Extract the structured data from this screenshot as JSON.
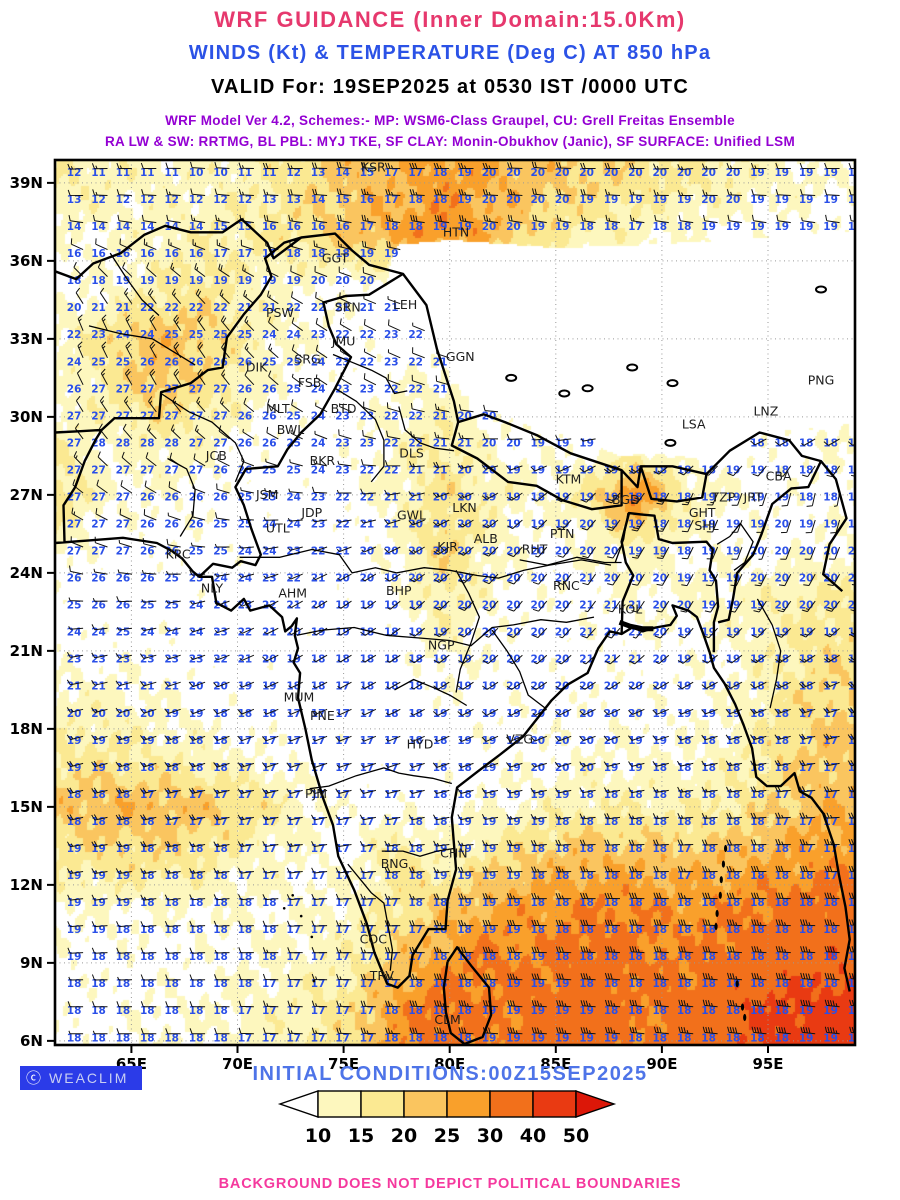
{
  "header": {
    "title": "WRF GUIDANCE (Inner Domain:15.0Km)",
    "subtitle": "WINDS (Kt) & TEMPERATURE (Deg C) AT 850 hPa",
    "valid_line": "VALID For: 19SEP2025 at 0530 IST /0000 UTC",
    "scheme_line1": "WRF Model Ver 4.2, Schemes:- MP: WSM6-Class Graupel, CU: Grell Freitas Ensemble",
    "scheme_line2": "RA LW & SW: RRTMG, BL PBL: MYJ TKE, SF CLAY: Monin-Obukhov (Janic), SF SURFACE: Unified LSM",
    "colors": {
      "title": "#E6386D",
      "subtitle": "#2B52E6",
      "valid": "#000000",
      "schemes": "#9400D3"
    }
  },
  "map": {
    "lon_ticks": [
      "65E",
      "70E",
      "75E",
      "80E",
      "85E",
      "90E",
      "95E"
    ],
    "lon_tick_values": [
      65,
      70,
      75,
      80,
      85,
      90,
      95
    ],
    "lat_ticks": [
      "39N",
      "36N",
      "33N",
      "30N",
      "27N",
      "24N",
      "21N",
      "18N",
      "15N",
      "12N",
      "9N",
      "6N"
    ],
    "lat_tick_values": [
      39,
      36,
      33,
      30,
      27,
      24,
      21,
      18,
      15,
      12,
      9,
      6
    ],
    "temp_color": "#2A4FE8",
    "station_color": "#1c1c1c",
    "stations": [
      {
        "id": "KSR",
        "lon": 76.4,
        "lat": 39.6
      },
      {
        "id": "HTN",
        "lon": 80.3,
        "lat": 37.1
      },
      {
        "id": "GGT",
        "lon": 74.6,
        "lat": 36.1
      },
      {
        "id": "SRN",
        "lon": 75.2,
        "lat": 34.2
      },
      {
        "id": "LEH",
        "lon": 77.9,
        "lat": 34.3
      },
      {
        "id": "JMU",
        "lon": 75.0,
        "lat": 32.9
      },
      {
        "id": "PSW",
        "lon": 72.0,
        "lat": 34.0
      },
      {
        "id": "SRG",
        "lon": 73.3,
        "lat": 32.2
      },
      {
        "id": "FSB",
        "lon": 73.4,
        "lat": 31.3
      },
      {
        "id": "GGN",
        "lon": 80.5,
        "lat": 32.3
      },
      {
        "id": "DIK",
        "lon": 70.9,
        "lat": 31.9
      },
      {
        "id": "MLT",
        "lon": 71.9,
        "lat": 30.3
      },
      {
        "id": "BWL",
        "lon": 72.5,
        "lat": 29.5
      },
      {
        "id": "BTD",
        "lon": 75.0,
        "lat": 30.3
      },
      {
        "id": "LNZ",
        "lon": 94.9,
        "lat": 30.2
      },
      {
        "id": "LSA",
        "lon": 91.5,
        "lat": 29.7
      },
      {
        "id": "PNG",
        "lon": 97.5,
        "lat": 31.4
      },
      {
        "id": "JCB",
        "lon": 69.0,
        "lat": 28.5
      },
      {
        "id": "BKR",
        "lon": 74.0,
        "lat": 28.3
      },
      {
        "id": "DLS",
        "lon": 78.2,
        "lat": 28.6
      },
      {
        "id": "KTM",
        "lon": 85.6,
        "lat": 27.6
      },
      {
        "id": "JSM",
        "lon": 71.4,
        "lat": 27.0
      },
      {
        "id": "JDP",
        "lon": 73.5,
        "lat": 26.3
      },
      {
        "id": "UTL",
        "lon": 71.9,
        "lat": 25.7
      },
      {
        "id": "GWL",
        "lon": 78.2,
        "lat": 26.2
      },
      {
        "id": "LKN",
        "lon": 80.7,
        "lat": 26.5
      },
      {
        "id": "BGD",
        "lon": 88.3,
        "lat": 26.8
      },
      {
        "id": "GHT",
        "lon": 91.9,
        "lat": 26.3
      },
      {
        "id": "SHL",
        "lon": 92.1,
        "lat": 25.8
      },
      {
        "id": "TZP",
        "lon": 92.9,
        "lat": 26.9
      },
      {
        "id": "JRT",
        "lon": 94.3,
        "lat": 26.9
      },
      {
        "id": "CBA",
        "lon": 95.5,
        "lat": 27.7
      },
      {
        "id": "PTN",
        "lon": 85.3,
        "lat": 25.5
      },
      {
        "id": "ALB",
        "lon": 81.7,
        "lat": 25.3
      },
      {
        "id": "KJR",
        "lon": 79.9,
        "lat": 25.0
      },
      {
        "id": "RHT",
        "lon": 84.0,
        "lat": 24.9
      },
      {
        "id": "KRC",
        "lon": 67.2,
        "lat": 24.7
      },
      {
        "id": "NLY",
        "lon": 68.8,
        "lat": 23.4
      },
      {
        "id": "AHM",
        "lon": 72.6,
        "lat": 23.2
      },
      {
        "id": "BHP",
        "lon": 77.6,
        "lat": 23.3
      },
      {
        "id": "RNC",
        "lon": 85.5,
        "lat": 23.5
      },
      {
        "id": "KOL",
        "lon": 88.5,
        "lat": 22.6
      },
      {
        "id": "NGP",
        "lon": 79.6,
        "lat": 21.2
      },
      {
        "id": "MUM",
        "lon": 72.9,
        "lat": 19.2
      },
      {
        "id": "PNE",
        "lon": 74.0,
        "lat": 18.5
      },
      {
        "id": "HYD",
        "lon": 78.6,
        "lat": 17.4
      },
      {
        "id": "VZG",
        "lon": 83.3,
        "lat": 17.6
      },
      {
        "id": "PJM",
        "lon": 73.7,
        "lat": 15.5
      },
      {
        "id": "BNG",
        "lon": 77.4,
        "lat": 12.8
      },
      {
        "id": "CHN",
        "lon": 80.2,
        "lat": 13.2
      },
      {
        "id": "COC",
        "lon": 76.4,
        "lat": 9.9
      },
      {
        "id": "TRV",
        "lon": 76.8,
        "lat": 8.5
      },
      {
        "id": "CLM",
        "lon": 79.9,
        "lat": 6.8
      }
    ],
    "grid": {
      "lon0": 61.75,
      "dlon": 2.25,
      "lat0": 39,
      "dlat": -2,
      "ncols": 17,
      "nrows": 17,
      "temps": [
        [
          12,
          11,
          11,
          10,
          11,
          12,
          14,
          17,
          18,
          20,
          20,
          20,
          20,
          20,
          20,
          19,
          19
        ],
        [
          15,
          15,
          14,
          15,
          16,
          17,
          17,
          18,
          19,
          20,
          19,
          18,
          17,
          18,
          19,
          19,
          19
        ],
        [
          18,
          19,
          20,
          19,
          19,
          20,
          21,
          20,
          19,
          18,
          18,
          18,
          18,
          18,
          18,
          18,
          18
        ],
        [
          22,
          24,
          25,
          26,
          25,
          24,
          22,
          23,
          21,
          19,
          18,
          18,
          18,
          18,
          18,
          18,
          18
        ],
        [
          26,
          27,
          27,
          27,
          26,
          25,
          23,
          22,
          21,
          19,
          18,
          18,
          18,
          18,
          18,
          18,
          18
        ],
        [
          27,
          28,
          28,
          27,
          26,
          25,
          23,
          22,
          21,
          20,
          19,
          19,
          19,
          18,
          18,
          18,
          18
        ],
        [
          27,
          27,
          26,
          26,
          25,
          24,
          22,
          21,
          20,
          19,
          18,
          19,
          18,
          18,
          19,
          19,
          18
        ],
        [
          27,
          27,
          26,
          25,
          24,
          23,
          21,
          20,
          20,
          20,
          20,
          20,
          19,
          18,
          19,
          20,
          20
        ],
        [
          25,
          26,
          25,
          24,
          23,
          21,
          19,
          19,
          20,
          20,
          20,
          21,
          21,
          20,
          19,
          20,
          20
        ],
        [
          23,
          24,
          24,
          23,
          21,
          19,
          18,
          18,
          19,
          20,
          20,
          21,
          21,
          19,
          19,
          18,
          18
        ],
        [
          20,
          20,
          20,
          19,
          18,
          17,
          17,
          18,
          19,
          19,
          20,
          20,
          20,
          19,
          19,
          18,
          17
        ],
        [
          19,
          19,
          18,
          18,
          17,
          17,
          17,
          17,
          18,
          19,
          20,
          20,
          19,
          18,
          18,
          18,
          17
        ],
        [
          18,
          18,
          17,
          17,
          17,
          17,
          17,
          17,
          18,
          19,
          19,
          18,
          18,
          18,
          18,
          17,
          17
        ],
        [
          19,
          19,
          18,
          18,
          17,
          17,
          17,
          18,
          19,
          19,
          18,
          18,
          18,
          17,
          18,
          18,
          17
        ],
        [
          19,
          19,
          18,
          18,
          18,
          17,
          17,
          17,
          18,
          19,
          18,
          18,
          18,
          18,
          18,
          18,
          18
        ],
        [
          19,
          18,
          18,
          18,
          18,
          17,
          17,
          17,
          18,
          18,
          19,
          18,
          18,
          18,
          18,
          18,
          18
        ],
        [
          18,
          18,
          18,
          18,
          17,
          17,
          17,
          18,
          18,
          19,
          19,
          19,
          18,
          18,
          18,
          18,
          19
        ]
      ],
      "wind_speed": [
        [
          15,
          13,
          12,
          12,
          14,
          18,
          22,
          24,
          28,
          25,
          22,
          20,
          18,
          16,
          14,
          12,
          10
        ],
        [
          10,
          10,
          12,
          14,
          15,
          18,
          22,
          26,
          30,
          24,
          18,
          14,
          12,
          10,
          8,
          8,
          8
        ],
        [
          8,
          10,
          14,
          18,
          12,
          10,
          8,
          8,
          8,
          8,
          8,
          8,
          8,
          8,
          8,
          8,
          8
        ],
        [
          12,
          18,
          24,
          20,
          14,
          10,
          8,
          6,
          8,
          8,
          8,
          8,
          8,
          8,
          8,
          8,
          8
        ],
        [
          10,
          16,
          22,
          18,
          12,
          8,
          6,
          10,
          12,
          8,
          8,
          8,
          8,
          8,
          8,
          8,
          8
        ],
        [
          14,
          10,
          14,
          12,
          8,
          6,
          8,
          12,
          16,
          10,
          8,
          8,
          8,
          8,
          6,
          8,
          10
        ],
        [
          18,
          10,
          10,
          8,
          6,
          6,
          8,
          12,
          18,
          14,
          10,
          16,
          32,
          15,
          10,
          8,
          8
        ],
        [
          12,
          6,
          8,
          8,
          6,
          5,
          6,
          10,
          20,
          12,
          8,
          10,
          14,
          10,
          8,
          8,
          10
        ],
        [
          6,
          6,
          6,
          6,
          6,
          5,
          6,
          8,
          16,
          10,
          8,
          8,
          10,
          10,
          12,
          14,
          16
        ],
        [
          8,
          8,
          8,
          6,
          6,
          6,
          5,
          6,
          12,
          8,
          6,
          8,
          8,
          8,
          10,
          14,
          18
        ],
        [
          12,
          12,
          10,
          8,
          6,
          6,
          5,
          5,
          8,
          8,
          8,
          8,
          8,
          8,
          10,
          16,
          20
        ],
        [
          16,
          16,
          14,
          12,
          10,
          8,
          6,
          5,
          6,
          8,
          8,
          10,
          10,
          10,
          12,
          18,
          22
        ],
        [
          22,
          24,
          24,
          22,
          18,
          12,
          8,
          8,
          8,
          10,
          12,
          14,
          14,
          14,
          16,
          20,
          24
        ],
        [
          16,
          18,
          18,
          16,
          12,
          10,
          8,
          18,
          12,
          18,
          22,
          24,
          24,
          22,
          24,
          26,
          28
        ],
        [
          10,
          10,
          10,
          10,
          10,
          10,
          12,
          16,
          22,
          26,
          28,
          30,
          30,
          28,
          30,
          32,
          34
        ],
        [
          8,
          8,
          8,
          8,
          10,
          12,
          14,
          22,
          28,
          32,
          30,
          34,
          32,
          30,
          34,
          36,
          38
        ],
        [
          8,
          8,
          10,
          10,
          12,
          14,
          18,
          28,
          34,
          30,
          34,
          36,
          30,
          34,
          38,
          42,
          44
        ]
      ],
      "wind_dir": [
        [
          265,
          270,
          270,
          275,
          270,
          270,
          275,
          270,
          270,
          270,
          275,
          270,
          270,
          265,
          270,
          270,
          270
        ],
        [
          280,
          280,
          280,
          280,
          280,
          280,
          280,
          280,
          280,
          280,
          280,
          280,
          280,
          280,
          280,
          280,
          280
        ],
        [
          320,
          320,
          315,
          310,
          300,
          295,
          290,
          285,
          280,
          280,
          280,
          280,
          280,
          280,
          280,
          280,
          280
        ],
        [
          340,
          335,
          330,
          325,
          315,
          305,
          300,
          295,
          290,
          285,
          280,
          280,
          280,
          280,
          280,
          280,
          280
        ],
        [
          335,
          330,
          330,
          325,
          315,
          305,
          300,
          290,
          285,
          280,
          275,
          275,
          275,
          275,
          275,
          275,
          275
        ],
        [
          325,
          320,
          315,
          310,
          300,
          295,
          285,
          280,
          275,
          270,
          265,
          260,
          255,
          250,
          245,
          240,
          240
        ],
        [
          310,
          305,
          300,
          290,
          280,
          275,
          270,
          260,
          250,
          240,
          230,
          225,
          215,
          205,
          200,
          195,
          190
        ],
        [
          295,
          290,
          285,
          275,
          265,
          255,
          250,
          245,
          235,
          225,
          220,
          215,
          210,
          205,
          200,
          200,
          200
        ],
        [
          275,
          270,
          265,
          255,
          245,
          240,
          235,
          230,
          225,
          220,
          218,
          215,
          212,
          210,
          210,
          212,
          215
        ],
        [
          262,
          258,
          255,
          250,
          245,
          240,
          238,
          235,
          230,
          228,
          226,
          225,
          225,
          228,
          230,
          232,
          235
        ],
        [
          258,
          255,
          252,
          250,
          248,
          246,
          244,
          242,
          240,
          240,
          240,
          242,
          244,
          246,
          248,
          250,
          252
        ],
        [
          255,
          254,
          253,
          252,
          251,
          250,
          250,
          250,
          250,
          250,
          252,
          254,
          255,
          256,
          258,
          258,
          258
        ],
        [
          258,
          258,
          258,
          258,
          258,
          258,
          258,
          258,
          258,
          260,
          260,
          262,
          262,
          264,
          264,
          265,
          265
        ],
        [
          260,
          260,
          260,
          260,
          262,
          262,
          262,
          264,
          264,
          266,
          266,
          268,
          268,
          268,
          268,
          270,
          270
        ],
        [
          264,
          264,
          264,
          266,
          266,
          266,
          268,
          268,
          268,
          270,
          270,
          270,
          272,
          272,
          272,
          272,
          272
        ],
        [
          268,
          268,
          268,
          268,
          270,
          270,
          270,
          270,
          272,
          272,
          272,
          274,
          274,
          274,
          274,
          274,
          274
        ],
        [
          270,
          270,
          270,
          270,
          272,
          272,
          272,
          272,
          274,
          274,
          274,
          274,
          276,
          276,
          276,
          276,
          276
        ]
      ]
    }
  },
  "colorbar": {
    "labels": [
      "10",
      "15",
      "20",
      "25",
      "30",
      "40",
      "50"
    ],
    "colors": [
      "#FDF7BE",
      "#FBE992",
      "#FAC55F",
      "#F9A02B",
      "#F2701B",
      "#E93A12"
    ],
    "left_arrow_color": "#FFFFFF",
    "right_arrow_color": "#DC1708"
  },
  "footer": {
    "logo": "WEACLIM",
    "logo_bg": "#2B3BE8",
    "initial_conditions": "INITIAL CONDITIONS:00Z15SEP2025",
    "initial_color": "#4E74E8",
    "disclaimer": "BACKGROUND DOES NOT DEPICT POLITICAL BOUNDARIES",
    "disclaimer_color": "#F5399E"
  }
}
